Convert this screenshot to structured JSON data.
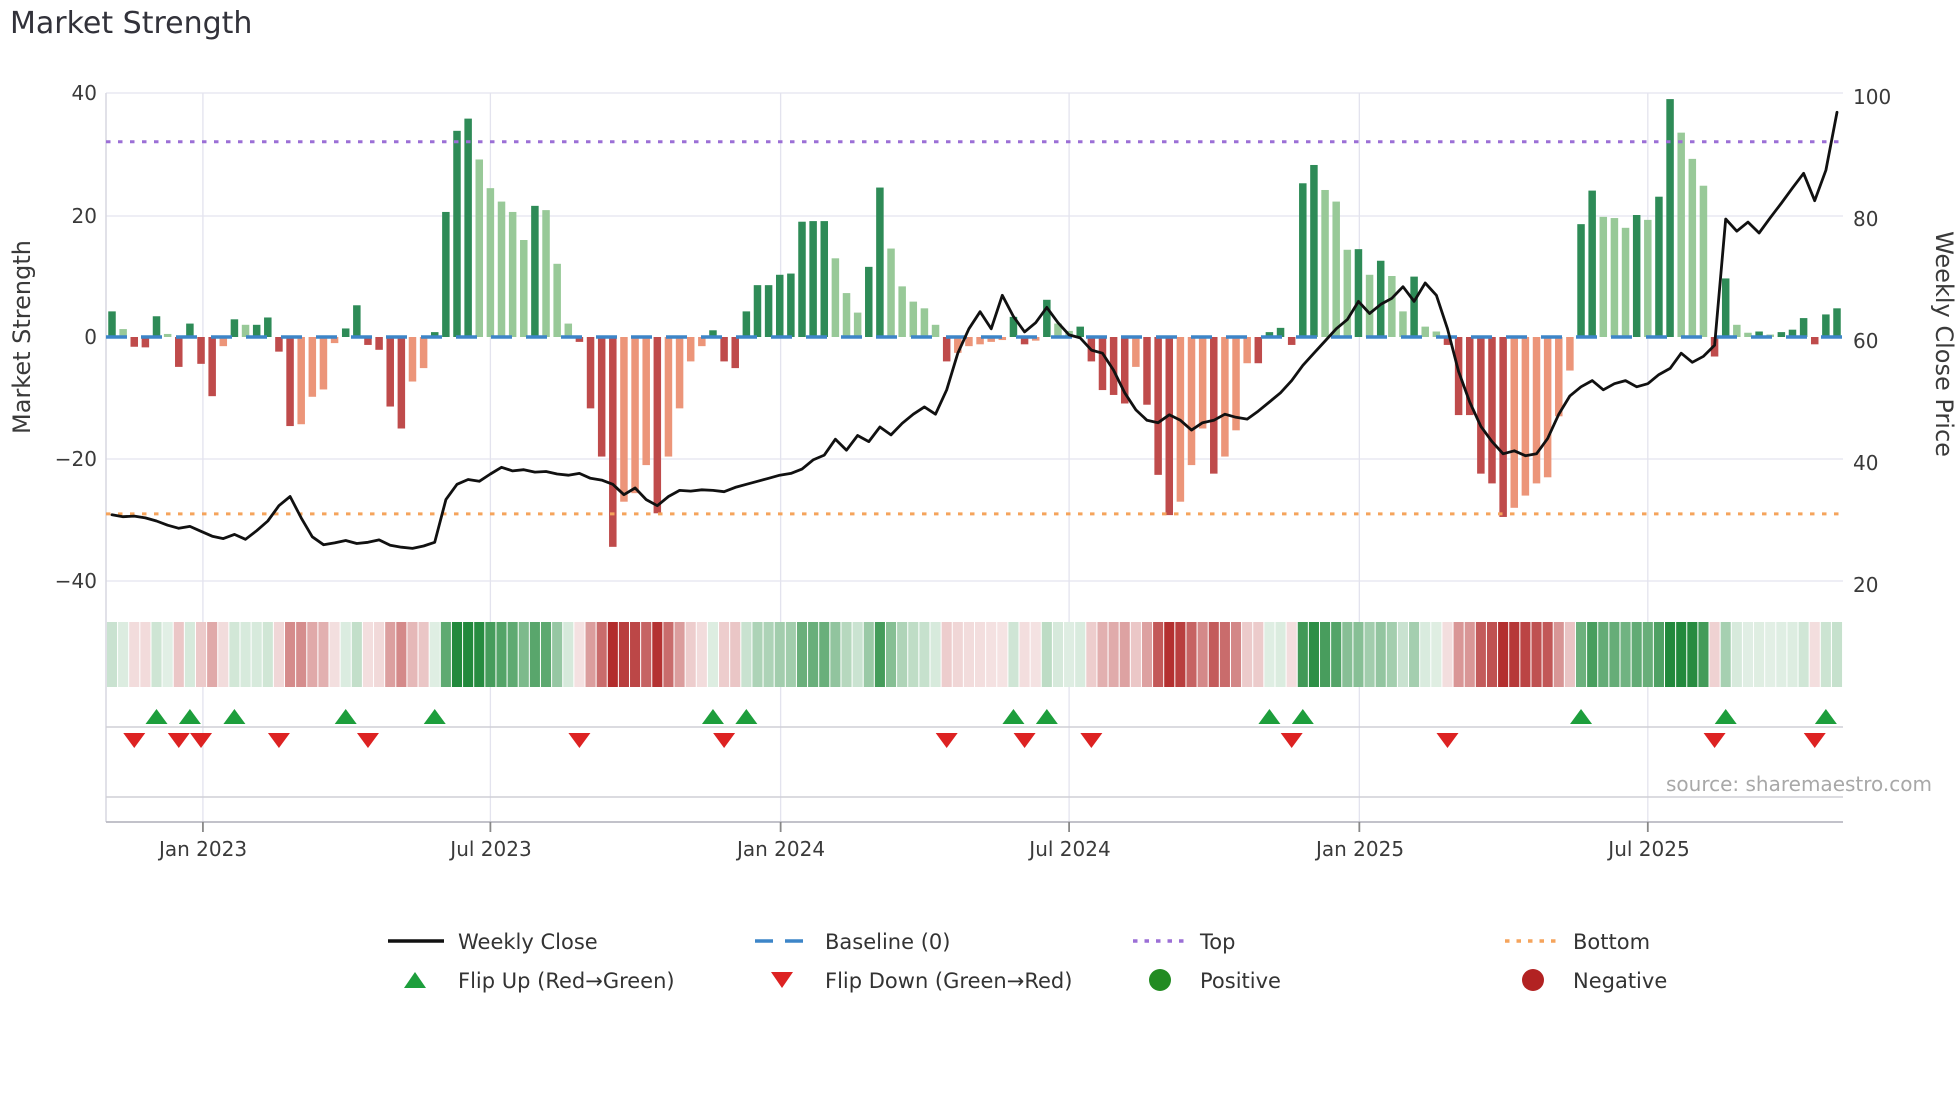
{
  "title": "Market Strength",
  "axes": {
    "left_label": "Market Strength",
    "right_label": "Weekly Close Price",
    "left_ticks": [
      "40",
      "20",
      "0",
      "−20",
      "−40"
    ],
    "right_ticks": [
      "100",
      "80",
      "60",
      "40",
      "20"
    ],
    "x_ticks": [
      "Jan 2023",
      "Jul 2023",
      "Jan 2024",
      "Jul 2024",
      "Jan 2025",
      "Jul 2025"
    ]
  },
  "source_text": "source: sharemaestro.com",
  "legend": {
    "weekly_close": "Weekly Close",
    "baseline": "Baseline (0)",
    "top": "Top",
    "bottom": "Bottom",
    "flip_up": "Flip Up (Red→Green)",
    "flip_down": "Flip Down (Green→Red)",
    "positive": "Positive",
    "negative": "Negative"
  },
  "chart_data": {
    "type": "bar",
    "subtype": "weekly market-strength bars + weekly close line + momentum heatmap + flip markers",
    "weeks": 156,
    "title": "Market Strength",
    "ylabel_left": "Market Strength",
    "ylabel_right": "Weekly Close Price",
    "ylim_left": [
      -40,
      40
    ],
    "ylim_right": [
      20,
      100
    ],
    "baseline_value": 0,
    "top_threshold": 32,
    "bottom_threshold": -29,
    "x_tick_weeks": [
      8.17,
      34.0,
      60.08,
      86.0,
      112.08,
      138.0
    ],
    "bar_values": [
      4.2,
      1.3,
      -1.6,
      -1.7,
      3.4,
      0.5,
      -4.9,
      2.2,
      -4.4,
      -9.7,
      -1.5,
      2.9,
      2.0,
      2.0,
      3.2,
      -2.4,
      -14.6,
      -14.3,
      -9.8,
      -8.6,
      -1.0,
      1.4,
      5.2,
      -1.3,
      -2.1,
      -11.4,
      -15.0,
      -7.3,
      -5.1,
      0.8,
      20.5,
      33.8,
      35.8,
      29.1,
      24.4,
      22.2,
      20.5,
      15.9,
      21.5,
      20.8,
      12.0,
      2.2,
      -0.8,
      -11.7,
      -19.6,
      -34.4,
      -27.0,
      -25.6,
      -21.0,
      -28.9,
      -19.6,
      -11.7,
      -4.0,
      -1.5,
      1.1,
      -4.0,
      -5.1,
      4.2,
      8.5,
      8.5,
      10.2,
      10.4,
      18.9,
      19.0,
      19.0,
      12.9,
      7.2,
      4.0,
      11.5,
      24.5,
      14.5,
      8.3,
      5.8,
      4.7,
      2.0,
      -4.0,
      -2.6,
      -1.5,
      -1.2,
      -0.8,
      -0.5,
      3.3,
      -1.2,
      -0.6,
      6.1,
      2.2,
      1.0,
      1.7,
      -4.0,
      -8.7,
      -9.5,
      -10.9,
      -4.9,
      -11.1,
      -22.6,
      -29.2,
      -27.0,
      -21.0,
      -15.0,
      -22.4,
      -19.6,
      -15.3,
      -4.3,
      -4.3,
      0.8,
      1.5,
      -1.3,
      25.2,
      28.2,
      24.1,
      22.2,
      14.3,
      14.4,
      10.2,
      12.5,
      10.0,
      4.2,
      9.9,
      1.7,
      0.9,
      -1.3,
      -12.8,
      -12.8,
      -22.4,
      -24.0,
      -29.5,
      -28.0,
      -26.0,
      -24.0,
      -23.0,
      -13.0,
      -5.5,
      18.5,
      24.0,
      19.7,
      19.5,
      17.9,
      20.0,
      19.2,
      23.0,
      39.0,
      33.5,
      29.2,
      24.8,
      -3.2,
      9.6,
      2.0,
      0.7,
      0.9,
      0.4,
      0.8,
      1.2,
      3.1,
      -1.2,
      3.7,
      4.7
    ],
    "price_values": [
      31.5,
      31.2,
      31.3,
      31.0,
      30.5,
      29.8,
      29.3,
      29.6,
      28.8,
      28.0,
      27.6,
      28.3,
      27.5,
      28.9,
      30.5,
      33.0,
      34.5,
      31.0,
      27.9,
      26.6,
      26.9,
      27.3,
      26.8,
      27.0,
      27.4,
      26.5,
      26.2,
      26.0,
      26.4,
      27.0,
      34.0,
      36.5,
      37.3,
      37.0,
      38.2,
      39.3,
      38.7,
      38.9,
      38.5,
      38.6,
      38.2,
      38.0,
      38.3,
      37.5,
      37.2,
      36.5,
      34.8,
      35.9,
      34.0,
      33.0,
      34.5,
      35.5,
      35.4,
      35.6,
      35.5,
      35.3,
      36.0,
      36.5,
      37.0,
      37.5,
      38.0,
      38.3,
      39.0,
      40.5,
      41.3,
      43.9,
      42.1,
      44.5,
      43.5,
      45.9,
      44.6,
      46.5,
      48.0,
      49.2,
      48.0,
      52.0,
      58.0,
      62.0,
      64.8,
      62.0,
      67.5,
      64.0,
      61.5,
      63.0,
      65.5,
      63.0,
      61.0,
      60.5,
      58.5,
      58.0,
      55.2,
      51.5,
      48.7,
      47.0,
      46.6,
      47.9,
      47.0,
      45.4,
      46.6,
      47.0,
      48.0,
      47.5,
      47.2,
      48.5,
      50.0,
      51.5,
      53.5,
      56.0,
      58.0,
      60.0,
      62.0,
      63.5,
      66.5,
      64.5,
      66.0,
      67.0,
      68.9,
      66.5,
      69.5,
      67.5,
      62.0,
      55.0,
      50.0,
      46.0,
      43.5,
      41.5,
      42.0,
      41.2,
      41.5,
      44.0,
      48.0,
      51.0,
      52.5,
      53.5,
      52.0,
      53.0,
      53.5,
      52.5,
      53.0,
      54.5,
      55.5,
      58.0,
      56.5,
      57.5,
      59.3,
      80.0,
      78.0,
      79.5,
      77.7,
      80.2,
      82.6,
      85.1,
      87.5,
      83.0,
      88.0,
      97.5
    ],
    "flip_up_weeks": [
      4,
      7,
      11,
      21,
      29,
      54,
      57,
      81,
      84,
      104,
      107,
      132,
      145,
      154
    ],
    "flip_down_weeks": [
      2,
      6,
      8,
      15,
      23,
      42,
      55,
      75,
      82,
      88,
      106,
      120,
      144,
      153
    ],
    "legend_position": "bottom",
    "grid": true,
    "colors": {
      "bar_pos_strong": "#2e8b57",
      "bar_pos_weak": "#98c998",
      "bar_neg_strong": "#bf4b4b",
      "bar_neg_weak": "#ec9579",
      "price_line": "#111111",
      "baseline": "#3d85c8",
      "top_line": "#9b6fd6",
      "bottom_line": "#f5a45c",
      "flip_up": "#1d9e3c",
      "flip_down": "#dd2222",
      "positive_dot": "#228B22",
      "negative_dot": "#b22222",
      "heat_green": "#22893c",
      "heat_red": "#b22c2c"
    }
  }
}
